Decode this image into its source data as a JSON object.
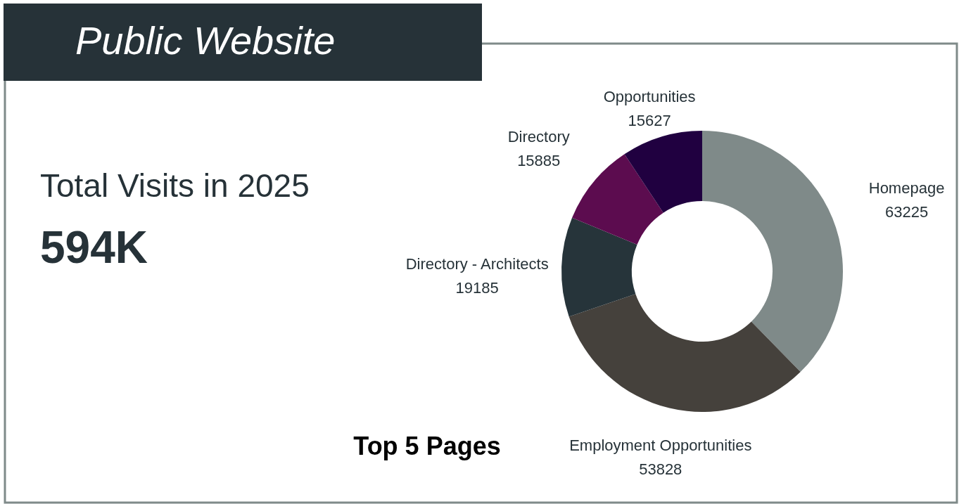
{
  "chart_data": {
    "type": "donut",
    "title": "Public Website",
    "subtitle": "Top 5 Pages",
    "categories": [
      "Homepage",
      "Employment Opportunities",
      "Directory - Architects",
      "Directory",
      "Opportunities"
    ],
    "values": [
      63225,
      53828,
      19185,
      15885,
      15627
    ],
    "colors": [
      "#7f8a89",
      "#45413c",
      "#26343a",
      "#5c0c4f",
      "#200040"
    ],
    "data_labels": true,
    "annotations": [
      "Total Visits in 2025",
      "594K"
    ]
  }
}
